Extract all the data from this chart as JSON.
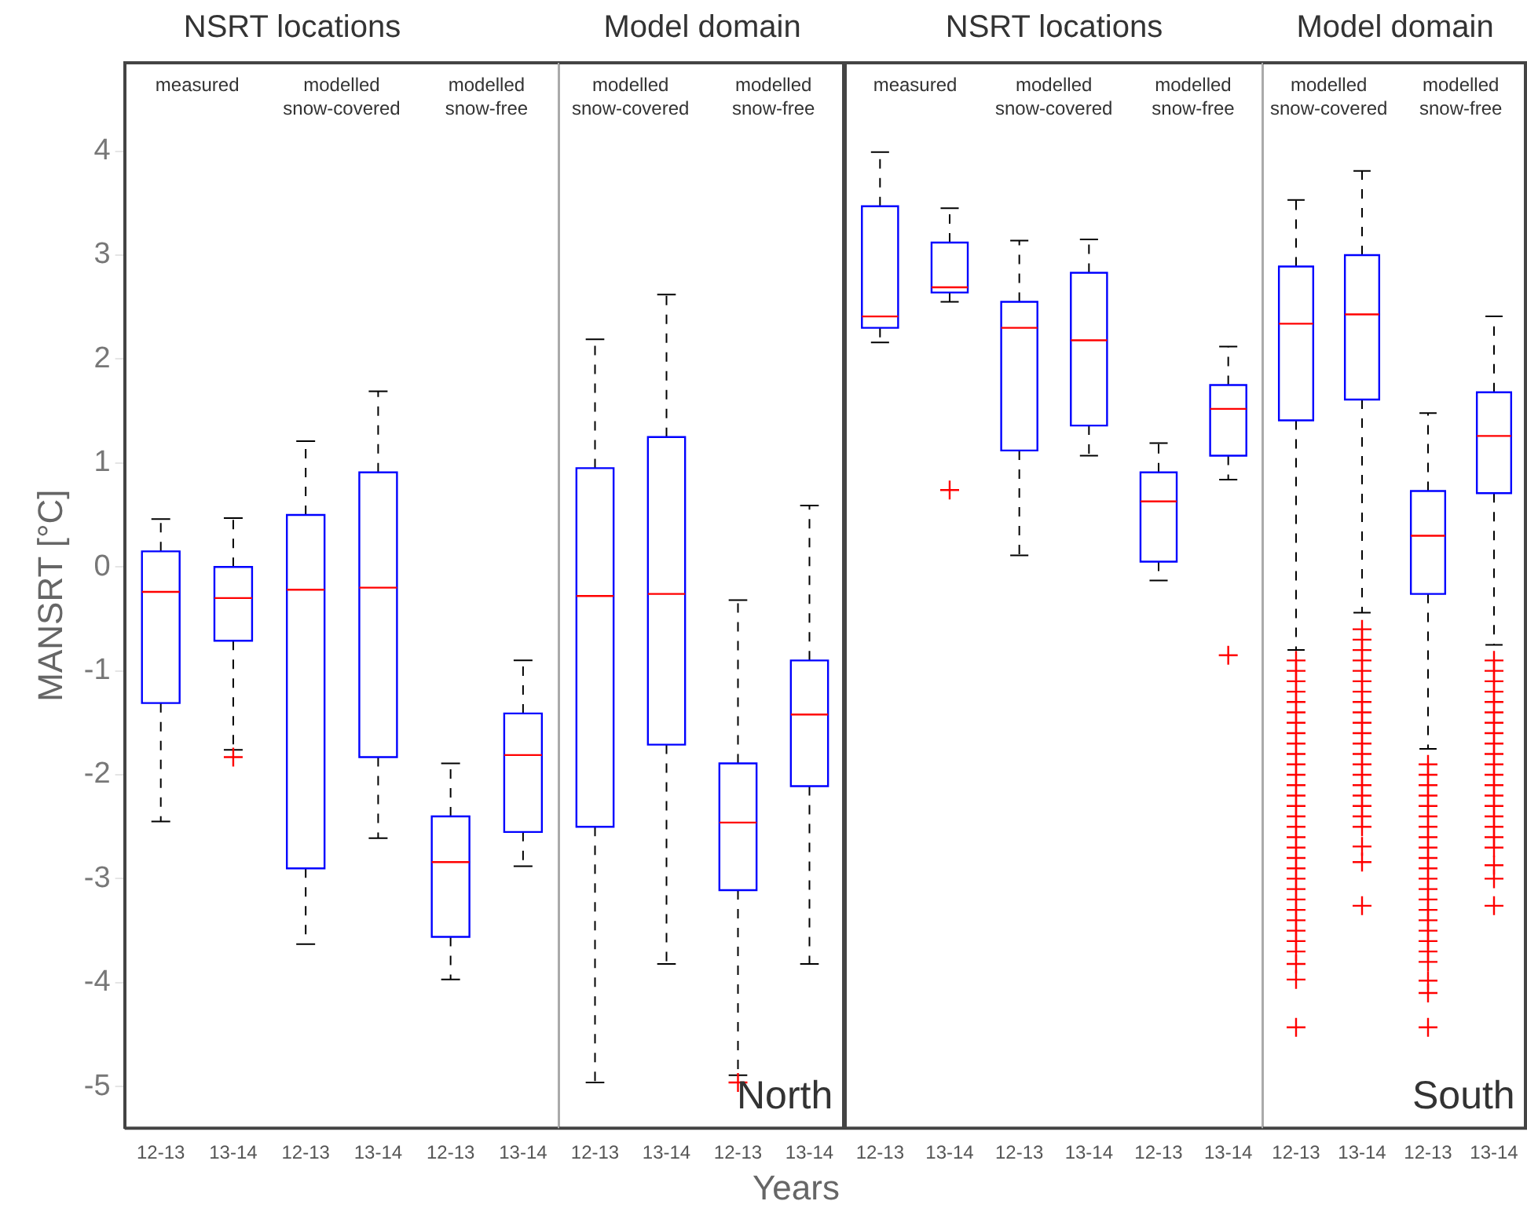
{
  "chart_data": [
    {
      "type": "box",
      "title": "NSRT locations",
      "ylabel": "MANSRT [°C]",
      "categories": [
        "12-13",
        "13-14",
        "12-13",
        "13-14",
        "12-13",
        "13-14"
      ],
      "ylim": [
        -5.4,
        4.85
      ],
      "yticks": [
        -5,
        -4,
        -3,
        -2,
        -1,
        0,
        1,
        2,
        3,
        4
      ],
      "annotations": [
        "measured",
        "modelled snow-covered",
        "modelled snow-free"
      ],
      "series": [
        {
          "color": "#0000ff",
          "boxes": [
            {
              "low": -2.45,
              "q1": -1.31,
              "median": -0.24,
              "q3": 0.15,
              "high": 0.46
            },
            {
              "low": -1.76,
              "q1": -0.71,
              "median": -0.3,
              "q3": 0,
              "high": 0.47,
              "outliers": [
                -1.83
              ]
            },
            {
              "low": -3.63,
              "q1": -2.9,
              "median": -0.22,
              "q3": 0.5,
              "high": 1.21
            },
            {
              "low": -2.61,
              "q1": -1.83,
              "median": -0.2,
              "q3": 0.91,
              "high": 1.69
            },
            {
              "low": -3.97,
              "q1": -3.56,
              "median": -2.84,
              "q3": -2.4,
              "high": -1.89
            },
            {
              "low": -2.88,
              "q1": -2.55,
              "median": -1.81,
              "q3": -1.41,
              "high": -0.9
            }
          ]
        }
      ]
    },
    {
      "type": "box",
      "title": "Model domain",
      "tick_labels": "x",
      "xlabel": "Years",
      "categories": [
        "12-13",
        "13-14",
        "12-13",
        "13-14"
      ],
      "ylim": [
        -5.4,
        4.85
      ],
      "yticks": [
        -5,
        -4,
        -3,
        -2,
        -1,
        0,
        1,
        2,
        3,
        4
      ],
      "annotations": [
        "modelled snow-covered",
        "modelled snow-free",
        "North"
      ],
      "series": [
        {
          "color": "#0000ff",
          "boxes": [
            {
              "low": -4.96,
              "q1": -2.5,
              "median": -0.28,
              "q3": 0.95,
              "high": 2.19
            },
            {
              "low": -3.82,
              "q1": -1.71,
              "median": -0.26,
              "q3": 1.25,
              "high": 2.62
            },
            {
              "low": -4.89,
              "q1": -3.11,
              "median": -2.46,
              "q3": -1.89,
              "high": -0.32,
              "outliers": [
                -4.96
              ]
            },
            {
              "low": -3.82,
              "q1": -2.11,
              "median": -1.42,
              "q3": -0.9,
              "high": 0.59
            }
          ]
        }
      ]
    },
    {
      "type": "box",
      "title": "NSRT locations",
      "tick_labels": "x",
      "categories": [
        "12-13",
        "13-14",
        "12-13",
        "13-14",
        "12-13",
        "13-14"
      ],
      "ylim": [
        -5.4,
        4.85
      ],
      "yticks": [
        -5,
        -4,
        -3,
        -2,
        -1,
        0,
        1,
        2,
        3,
        4
      ],
      "annotations": [
        "measured",
        "modelled snow-covered",
        "modelled snow-free"
      ],
      "series": [
        {
          "color": "#0000ff",
          "boxes": [
            {
              "low": 2.16,
              "q1": 2.3,
              "median": 2.41,
              "q3": 3.47,
              "high": 3.99
            },
            {
              "low": 2.55,
              "q1": 2.64,
              "median": 2.69,
              "q3": 3.12,
              "high": 3.45,
              "outliers": [
                0.74
              ]
            },
            {
              "low": 0.11,
              "q1": 1.12,
              "median": 2.3,
              "q3": 2.55,
              "high": 3.14
            },
            {
              "low": 1.07,
              "q1": 1.36,
              "median": 2.18,
              "q3": 2.83,
              "high": 3.15
            },
            {
              "low": -0.13,
              "q1": 0.05,
              "median": 0.63,
              "q3": 0.91,
              "high": 1.19
            },
            {
              "low": 0.84,
              "q1": 1.07,
              "median": 1.52,
              "q3": 1.75,
              "high": 2.12,
              "outliers": [
                -0.85
              ]
            }
          ]
        }
      ]
    },
    {
      "type": "box",
      "title": "Model domain",
      "tick_labels": "x",
      "categories": [
        "12-13",
        "13-14",
        "12-13",
        "13-14"
      ],
      "ylim": [
        -5.4,
        4.85
      ],
      "yticks": [
        -5,
        -4,
        -3,
        -2,
        -1,
        0,
        1,
        2,
        3,
        4
      ],
      "annotations": [
        "modelled snow-covered",
        "modelled snow-free",
        "South"
      ],
      "series": [
        {
          "color": "#0000ff",
          "boxes": [
            {
              "low": -0.8,
              "q1": 1.41,
              "median": 2.34,
              "q3": 2.89,
              "high": 3.53,
              "outliers": [
                -0.9,
                -1,
                -1.1,
                -1.2,
                -1.3,
                -1.4,
                -1.5,
                -1.6,
                -1.7,
                -1.8,
                -1.9,
                -2,
                -2.1,
                -2.2,
                -2.3,
                -2.4,
                -2.5,
                -2.6,
                -2.7,
                -2.8,
                -2.9,
                -3,
                -3.1,
                -3.2,
                -3.3,
                -3.4,
                -3.5,
                -3.6,
                -3.7,
                -3.82,
                -3.97,
                -4.43
              ]
            },
            {
              "low": -0.44,
              "q1": 1.61,
              "median": 2.43,
              "q3": 3,
              "high": 3.81,
              "outliers": [
                -0.6,
                -0.7,
                -0.8,
                -0.9,
                -1,
                -1.1,
                -1.2,
                -1.3,
                -1.4,
                -1.5,
                -1.6,
                -1.7,
                -1.8,
                -1.9,
                -2,
                -2.1,
                -2.2,
                -2.3,
                -2.4,
                -2.5,
                -2.69,
                -2.84,
                -3.26
              ]
            },
            {
              "low": -1.75,
              "q1": -0.26,
              "median": 0.3,
              "q3": 0.73,
              "high": 1.48,
              "outliers": [
                -1.9,
                -2,
                -2.1,
                -2.2,
                -2.3,
                -2.4,
                -2.5,
                -2.6,
                -2.7,
                -2.8,
                -2.9,
                -3,
                -3.1,
                -3.2,
                -3.3,
                -3.4,
                -3.5,
                -3.6,
                -3.7,
                -3.8,
                -3.98,
                -4.1,
                -4.43
              ]
            },
            {
              "low": -0.75,
              "q1": 0.71,
              "median": 1.26,
              "q3": 1.68,
              "high": 2.41,
              "outliers": [
                -0.9,
                -1,
                -1.1,
                -1.2,
                -1.3,
                -1.4,
                -1.5,
                -1.6,
                -1.7,
                -1.8,
                -1.9,
                -2,
                -2.1,
                -2.2,
                -2.3,
                -2.4,
                -2.5,
                -2.6,
                -2.7,
                -2.87,
                -3,
                -3.26
              ]
            }
          ]
        }
      ]
    }
  ]
}
